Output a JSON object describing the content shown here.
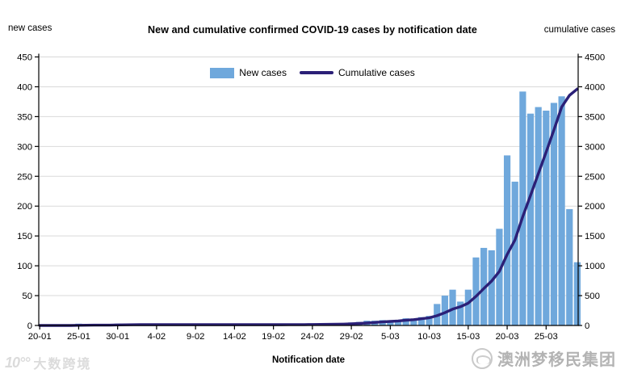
{
  "header": {
    "title": "New and cumulative confirmed COVID-19 cases by notification date",
    "left_axis_title": "new cases",
    "right_axis_title": "cumulative cases"
  },
  "legend": {
    "new_cases_label": "New cases",
    "cumulative_label": "Cumulative cases"
  },
  "colors": {
    "bar": "#6FA8DC",
    "line": "#2B2077",
    "gridline": "#D9D9D9",
    "axis": "#000000"
  },
  "x_axis_title": "Notification date",
  "chart_data": {
    "type": "bar",
    "title": "New and cumulative confirmed COVID-19 cases by notification date",
    "xlabel": "Notification date",
    "grid": "horizontal",
    "legend_position": "top-center",
    "categories": [
      "20-01",
      "21-01",
      "22-01",
      "23-01",
      "24-01",
      "25-01",
      "26-01",
      "27-01",
      "28-01",
      "29-01",
      "30-01",
      "31-01",
      "1-02",
      "2-02",
      "3-02",
      "4-02",
      "5-02",
      "6-02",
      "7-02",
      "8-02",
      "9-02",
      "10-02",
      "11-02",
      "12-02",
      "13-02",
      "14-02",
      "15-02",
      "16-02",
      "17-02",
      "18-02",
      "19-02",
      "20-02",
      "21-02",
      "22-02",
      "23-02",
      "24-02",
      "25-02",
      "26-02",
      "27-02",
      "28-02",
      "29-02",
      "1-03",
      "2-03",
      "3-03",
      "4-03",
      "5-03",
      "6-03",
      "7-03",
      "8-03",
      "9-03",
      "10-03",
      "11-03",
      "12-03",
      "13-03",
      "14-03",
      "15-03",
      "16-03",
      "17-03",
      "18-03",
      "19-03",
      "20-03",
      "21-03",
      "22-03",
      "23-03",
      "24-03",
      "25-03",
      "26-03",
      "27-03",
      "28-03",
      "29-03"
    ],
    "x_tick_labels": [
      "20-01",
      "25-01",
      "30-01",
      "4-02",
      "9-02",
      "14-02",
      "19-02",
      "24-02",
      "29-02",
      "5-03",
      "10-03",
      "15-03",
      "20-03",
      "25-03"
    ],
    "x_tick_step": 5,
    "series": [
      {
        "name": "New cases",
        "type": "bar",
        "axis": "left",
        "values": [
          0,
          0,
          0,
          0,
          0,
          3,
          1,
          1,
          0,
          1,
          3,
          2,
          1,
          1,
          0,
          0,
          0,
          1,
          0,
          0,
          0,
          0,
          0,
          0,
          0,
          0,
          0,
          0,
          0,
          0,
          0,
          0,
          1,
          0,
          0,
          1,
          1,
          2,
          1,
          3,
          5,
          6,
          8,
          8,
          9,
          8,
          9,
          12,
          10,
          14,
          16,
          36,
          50,
          60,
          40,
          60,
          114,
          130,
          126,
          162,
          285,
          241,
          392,
          355,
          366,
          360,
          373,
          384,
          195,
          106
        ]
      },
      {
        "name": "Cumulative cases",
        "type": "line",
        "axis": "right",
        "values": [
          0,
          0,
          0,
          0,
          0,
          3,
          4,
          5,
          5,
          6,
          9,
          11,
          12,
          13,
          13,
          13,
          13,
          14,
          14,
          14,
          14,
          14,
          14,
          14,
          14,
          14,
          14,
          14,
          14,
          14,
          14,
          14,
          15,
          15,
          15,
          16,
          17,
          19,
          20,
          23,
          28,
          34,
          42,
          50,
          59,
          67,
          76,
          88,
          98,
          112,
          128,
          164,
          214,
          274,
          314,
          374,
          488,
          618,
          744,
          906,
          1191,
          1432,
          1824,
          2179,
          2545,
          2905,
          3278,
          3662,
          3857,
          3963
        ]
      }
    ],
    "y_left": {
      "label": "new cases",
      "min": 0,
      "max": 450,
      "step": 50,
      "ticks": [
        0,
        50,
        100,
        150,
        200,
        250,
        300,
        350,
        400,
        450
      ]
    },
    "y_right": {
      "label": "cumulative cases",
      "min": 0,
      "max": 4500,
      "step": 500,
      "ticks": [
        0,
        500,
        1000,
        1500,
        2000,
        2500,
        3000,
        3500,
        4000,
        4500
      ]
    }
  },
  "watermarks": {
    "left": {
      "logo": "10°°",
      "text": "大数跨境"
    },
    "right": {
      "text": "澳洲梦移民集团",
      "icon": "kangaroo-circle-icon"
    }
  }
}
